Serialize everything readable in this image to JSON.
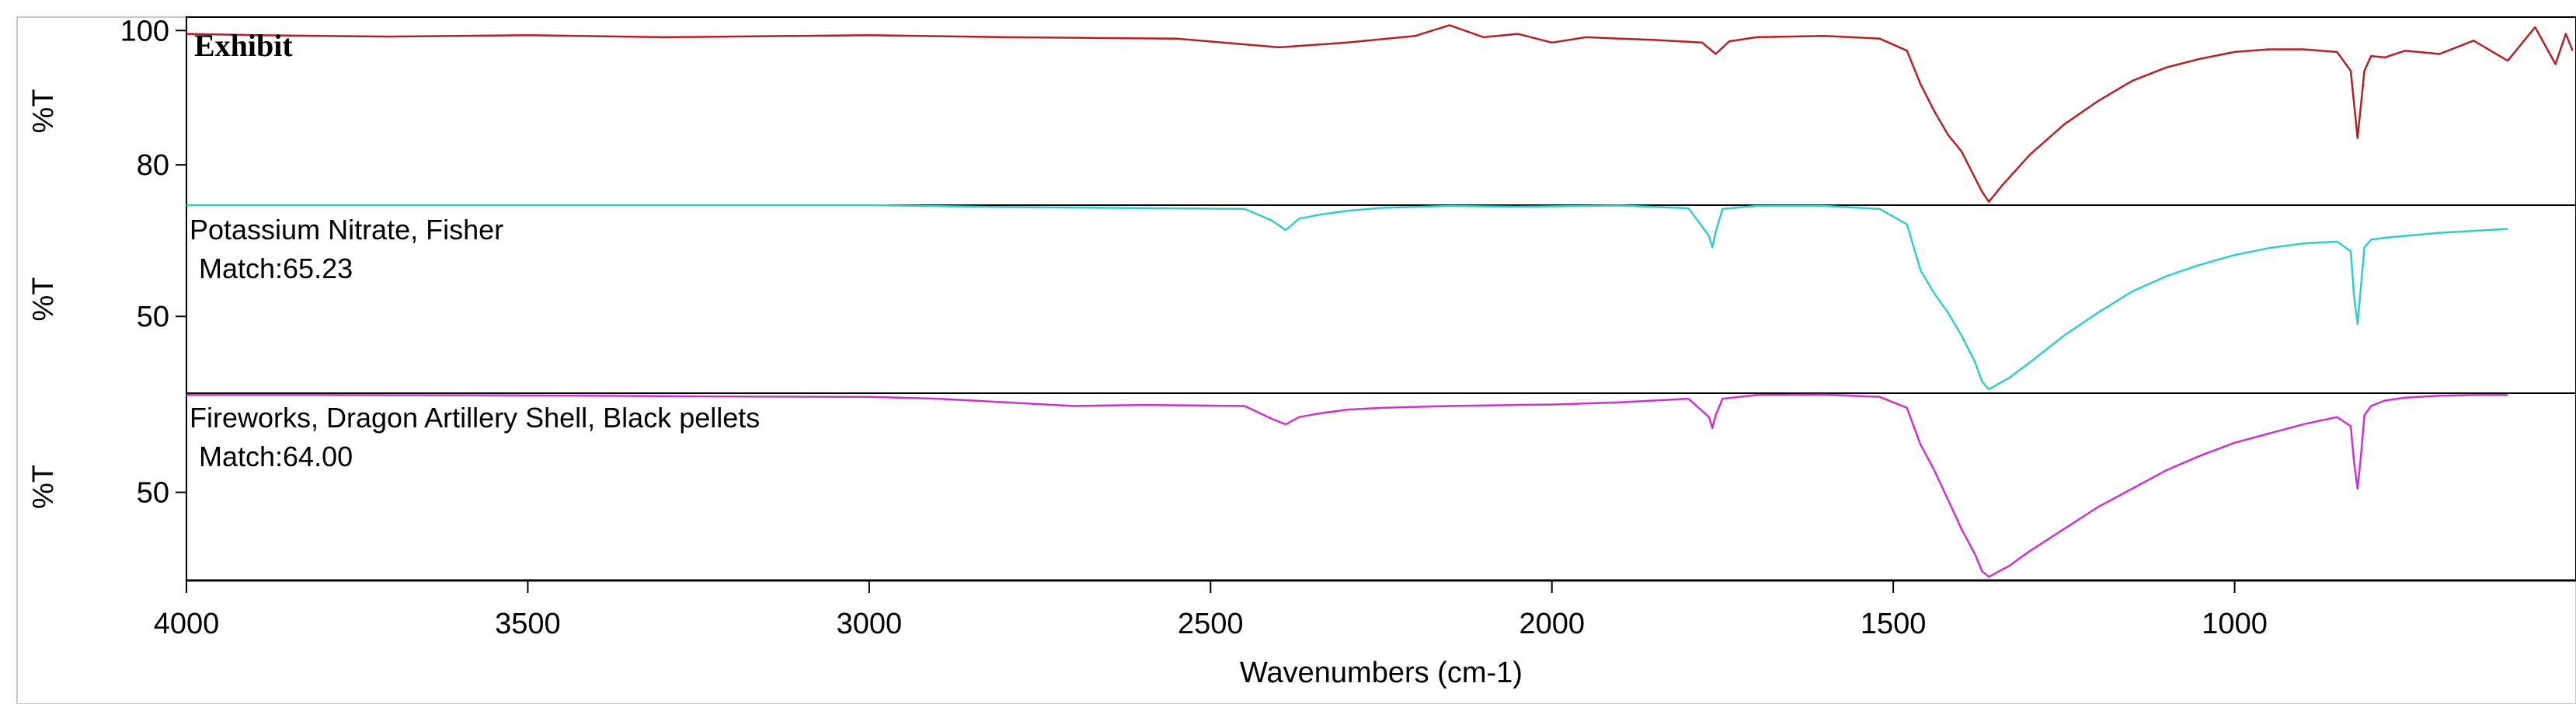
{
  "chart_data": {
    "type": "line",
    "xlabel": "Wavenumbers (cm-1)",
    "xlim": [
      4000,
      500
    ],
    "x_ticks": [
      4000,
      3500,
      3000,
      2500,
      2000,
      1500,
      1000
    ],
    "grid": false,
    "panels": [
      {
        "label": "Exhibit",
        "match": "",
        "ylabel": "%T",
        "ylim": [
          74,
          102
        ],
        "y_ticks": [
          100,
          80
        ],
        "color": "#b22222",
        "series": {
          "name": "Exhibit",
          "x": [
            4000,
            3900,
            3700,
            3500,
            3300,
            3000,
            2800,
            2550,
            2400,
            2300,
            2200,
            2150,
            2100,
            2050,
            2000,
            1950,
            1900,
            1850,
            1780,
            1760,
            1740,
            1700,
            1600,
            1520,
            1480,
            1460,
            1440,
            1420,
            1400,
            1385,
            1370,
            1360,
            1340,
            1300,
            1250,
            1200,
            1150,
            1100,
            1050,
            1000,
            950,
            900,
            850,
            830,
            820,
            810,
            800,
            780,
            750,
            700,
            650,
            600,
            560,
            530,
            515,
            505
          ],
          "y": [
            99.5,
            99.3,
            99.1,
            99.3,
            99.0,
            99.3,
            99.0,
            98.8,
            97.5,
            98.2,
            99.2,
            100.8,
            99.0,
            99.5,
            98.2,
            99.0,
            98.8,
            98.6,
            98.2,
            96.5,
            98.4,
            99.0,
            99.2,
            98.8,
            97.0,
            92.0,
            88.0,
            84.5,
            82.0,
            79.0,
            76.0,
            74.5,
            77.0,
            81.5,
            86.0,
            89.5,
            92.5,
            94.5,
            95.8,
            96.8,
            97.2,
            97.2,
            96.8,
            94.0,
            84.0,
            94.0,
            96.2,
            96.0,
            97.0,
            96.5,
            98.5,
            95.5,
            100.5,
            95.0,
            99.5,
            97.0
          ]
        }
      },
      {
        "label": "Potassium Nitrate, Fisher",
        "match": "Match:65.23",
        "ylabel": "%T",
        "ylim": [
          30,
          79
        ],
        "y_ticks": [
          50
        ],
        "color": "#33cccc",
        "series": {
          "name": "Potassium Nitrate, Fisher",
          "x": [
            4000,
            3800,
            3600,
            3400,
            3200,
            3000,
            2800,
            2450,
            2410,
            2390,
            2370,
            2340,
            2300,
            2250,
            2150,
            2050,
            2000,
            1900,
            1800,
            1770,
            1765,
            1760,
            1750,
            1700,
            1600,
            1520,
            1480,
            1460,
            1440,
            1420,
            1400,
            1380,
            1370,
            1360,
            1330,
            1300,
            1250,
            1200,
            1150,
            1100,
            1050,
            1000,
            950,
            900,
            850,
            830,
            825,
            820,
            815,
            810,
            800,
            780,
            750,
            700,
            650,
            600
          ],
          "y": [
            79.0,
            79.0,
            79.0,
            79.0,
            79.0,
            79.0,
            78.5,
            78.0,
            75.0,
            72.5,
            75.5,
            76.5,
            77.5,
            78.3,
            78.8,
            78.6,
            78.7,
            78.9,
            78.2,
            71.0,
            68.0,
            72.0,
            78.0,
            78.8,
            78.8,
            78.0,
            74.0,
            62.0,
            56.0,
            51.0,
            45.0,
            38.0,
            33.0,
            31.0,
            34.0,
            38.0,
            45.0,
            51.0,
            56.5,
            60.5,
            63.5,
            66.0,
            67.8,
            69.0,
            69.5,
            67.0,
            55.0,
            48.0,
            58.0,
            68.0,
            70.0,
            70.5,
            71.0,
            71.8,
            72.3,
            72.8
          ]
        }
      },
      {
        "label": "Fireworks, Dragon Artillery Shell, Black pellets",
        "match": "Match:64.00",
        "ylabel": "%T",
        "ylim": [
          26,
          77
        ],
        "y_ticks": [
          50
        ],
        "color": "#cc33cc",
        "series": {
          "name": "Fireworks, Dragon Artillery Shell, Black pellets",
          "x": [
            4000,
            3800,
            3600,
            3400,
            3200,
            3000,
            2900,
            2800,
            2700,
            2600,
            2450,
            2410,
            2390,
            2370,
            2340,
            2300,
            2250,
            2150,
            2050,
            2000,
            1900,
            1800,
            1770,
            1765,
            1760,
            1750,
            1700,
            1600,
            1520,
            1480,
            1460,
            1440,
            1420,
            1400,
            1380,
            1370,
            1360,
            1330,
            1300,
            1250,
            1200,
            1150,
            1100,
            1050,
            1000,
            950,
            900,
            850,
            830,
            825,
            820,
            815,
            810,
            800,
            780,
            750,
            700,
            650,
            600
          ],
          "y": [
            76.5,
            76.5,
            76.4,
            76.3,
            76.1,
            76.0,
            75.5,
            74.5,
            73.5,
            73.8,
            73.5,
            70.0,
            68.5,
            70.5,
            71.5,
            72.5,
            73.0,
            73.5,
            73.8,
            73.9,
            74.5,
            75.5,
            70.5,
            67.5,
            71.0,
            75.5,
            76.5,
            76.6,
            76.0,
            73.0,
            63.0,
            56.0,
            48.0,
            40.0,
            33.0,
            28.5,
            27.0,
            30.0,
            34.0,
            40.0,
            46.0,
            51.0,
            56.0,
            60.0,
            63.5,
            66.0,
            68.5,
            70.5,
            68.0,
            58.0,
            51.0,
            60.0,
            71.0,
            73.5,
            75.0,
            75.8,
            76.3,
            76.5,
            76.5
          ]
        }
      }
    ]
  }
}
